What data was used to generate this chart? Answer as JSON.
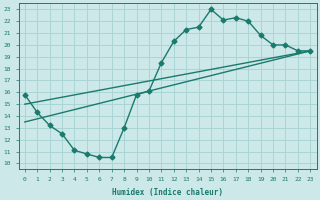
{
  "xlabel": "Humidex (Indice chaleur)",
  "ylabel": "",
  "xlim": [
    -0.5,
    23.5
  ],
  "ylim": [
    9.5,
    23.5
  ],
  "xticks": [
    0,
    1,
    2,
    3,
    4,
    5,
    6,
    7,
    8,
    9,
    10,
    11,
    12,
    13,
    14,
    15,
    16,
    17,
    18,
    19,
    20,
    21,
    22,
    23
  ],
  "yticks": [
    10,
    11,
    12,
    13,
    14,
    15,
    16,
    17,
    18,
    19,
    20,
    21,
    22,
    23
  ],
  "line_color": "#1a7a6e",
  "bg_color": "#cce8e8",
  "grid_color": "#aad4d4",
  "line1_x": [
    0,
    1,
    2,
    3,
    4,
    5,
    6,
    7,
    8,
    9,
    10,
    11,
    12,
    13,
    14,
    15,
    16,
    17,
    18,
    19,
    20,
    21,
    22,
    23
  ],
  "line1_y": [
    15.8,
    14.3,
    13.2,
    12.5,
    11.1,
    10.8,
    10.5,
    10.5,
    13.0,
    15.8,
    16.1,
    18.5,
    20.3,
    21.3,
    21.5,
    23.0,
    22.1,
    22.3,
    22.0,
    20.8,
    20.0,
    20.0,
    19.5,
    19.5
  ],
  "line2_x": [
    0,
    23
  ],
  "line2_y": [
    15.0,
    19.5
  ],
  "line3_x": [
    0,
    23
  ],
  "line3_y": [
    13.5,
    19.5
  ],
  "marker": "D",
  "markersize": 2.5,
  "linewidth": 1.0
}
